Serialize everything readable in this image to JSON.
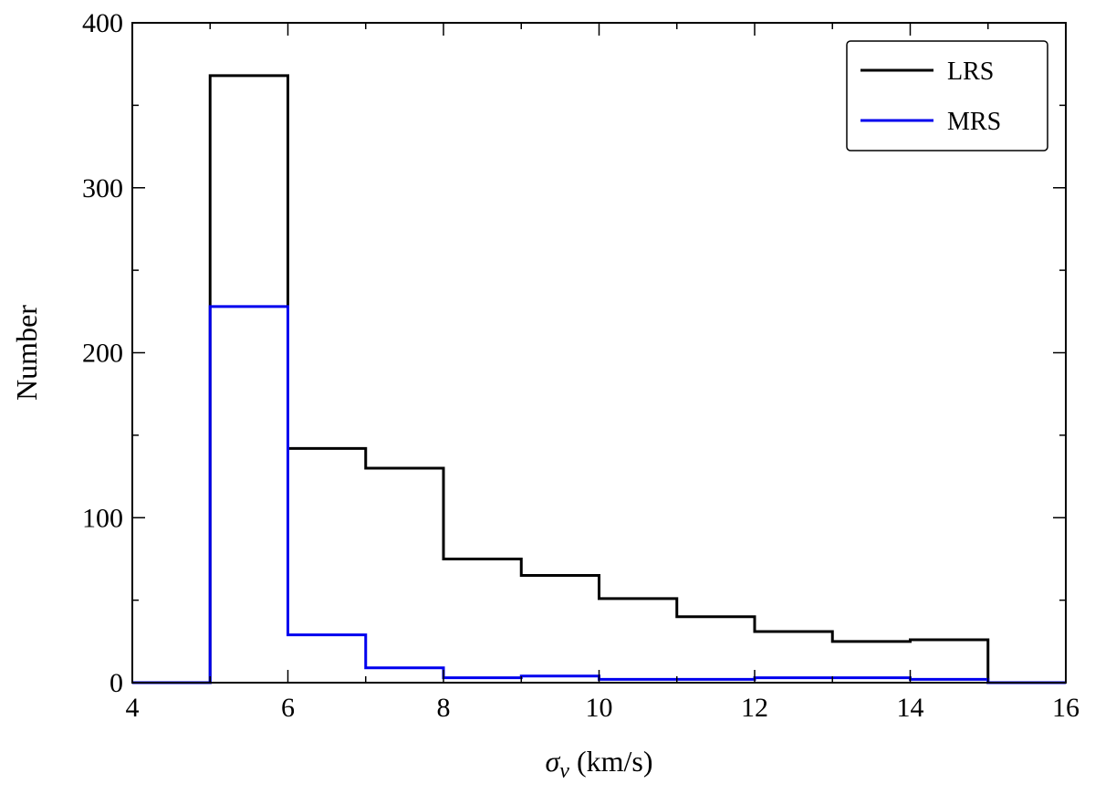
{
  "chart_data": {
    "type": "histogram",
    "title": "",
    "xlabel": {
      "symbol": "σ",
      "subscript": "v",
      "unit": " (km/s)"
    },
    "ylabel": "Number",
    "xlim": [
      4,
      16
    ],
    "ylim": [
      0,
      400
    ],
    "xticks": [
      4,
      6,
      8,
      10,
      12,
      14,
      16
    ],
    "yticks": [
      0,
      100,
      200,
      300,
      400
    ],
    "xminor_step": 1,
    "yminor_step": 50,
    "bin_edges": [
      4,
      5,
      6,
      7,
      8,
      9,
      10,
      11,
      12,
      13,
      14,
      15,
      16
    ],
    "series": [
      {
        "name": "LRS",
        "color": "#000000",
        "values": [
          0,
          368,
          142,
          130,
          75,
          65,
          51,
          40,
          31,
          25,
          26,
          0
        ]
      },
      {
        "name": "MRS",
        "color": "#0000ee",
        "values": [
          0,
          228,
          29,
          9,
          3,
          4,
          2,
          2,
          3,
          3,
          2,
          0
        ]
      }
    ],
    "legend_position": "top-right",
    "grid": false
  }
}
